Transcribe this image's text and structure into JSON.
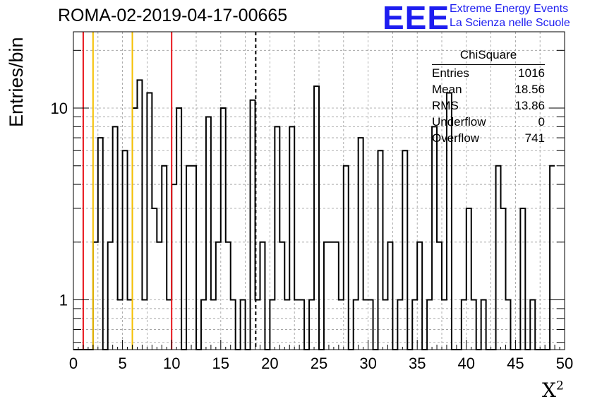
{
  "title": "ROMA-02-2019-04-17-00665",
  "logo": {
    "mark": "EEE",
    "line1": "Extreme Energy Events",
    "line2": "La Scienza nelle Scuole",
    "color": "#1d1df0"
  },
  "stats": {
    "name": "ChiSquare",
    "rows": [
      {
        "label": "Entries",
        "value": "1016"
      },
      {
        "label": "Mean",
        "value": "18.56"
      },
      {
        "label": "RMS",
        "value": "13.86"
      },
      {
        "label": "Underflow",
        "value": "0"
      },
      {
        "label": "Overflow",
        "value": "741"
      }
    ]
  },
  "chart_data": {
    "type": "bar",
    "histogram": "step",
    "title": "ROMA-02-2019-04-17-00665",
    "xlabel": "X",
    "xlabel_superscript": "2",
    "ylabel": "Entries/bin",
    "xlim": [
      0,
      50
    ],
    "ylim": [
      0.55,
      25
    ],
    "yscale": "log",
    "grid": true,
    "bin_width": 0.5,
    "x_ticks": [
      "0",
      "5",
      "10",
      "15",
      "20",
      "25",
      "30",
      "35",
      "40",
      "45",
      "50"
    ],
    "y_ticks": [
      "1",
      "10"
    ],
    "values": [
      0,
      0,
      0,
      0,
      2,
      7,
      0,
      2,
      8,
      1,
      6,
      1,
      10,
      14,
      1,
      12,
      3,
      2,
      5,
      1,
      4,
      10,
      0,
      5,
      5,
      0,
      1,
      9,
      1,
      2,
      10,
      2,
      1,
      0,
      1,
      0,
      11,
      1,
      2,
      0,
      1,
      8,
      2,
      1,
      8,
      1,
      1,
      0,
      1,
      13,
      0,
      2,
      2,
      2,
      1,
      5,
      0,
      1,
      7,
      1,
      1,
      0,
      6,
      1,
      2,
      0,
      1,
      6,
      0,
      1,
      2,
      0,
      1,
      8,
      2,
      1,
      12,
      0,
      0,
      1,
      3,
      1,
      0,
      1,
      0,
      0,
      5,
      3,
      1,
      0,
      0,
      3,
      0,
      1,
      0,
      0,
      0,
      5
    ],
    "vertical_lines": [
      {
        "x": 1,
        "color": "#e8141a",
        "style": "solid"
      },
      {
        "x": 2,
        "color": "#f5c000",
        "style": "solid"
      },
      {
        "x": 6,
        "color": "#f5c000",
        "style": "solid"
      },
      {
        "x": 10,
        "color": "#e8141a",
        "style": "solid"
      },
      {
        "x": 18.56,
        "color": "#000000",
        "style": "dashed"
      }
    ]
  }
}
